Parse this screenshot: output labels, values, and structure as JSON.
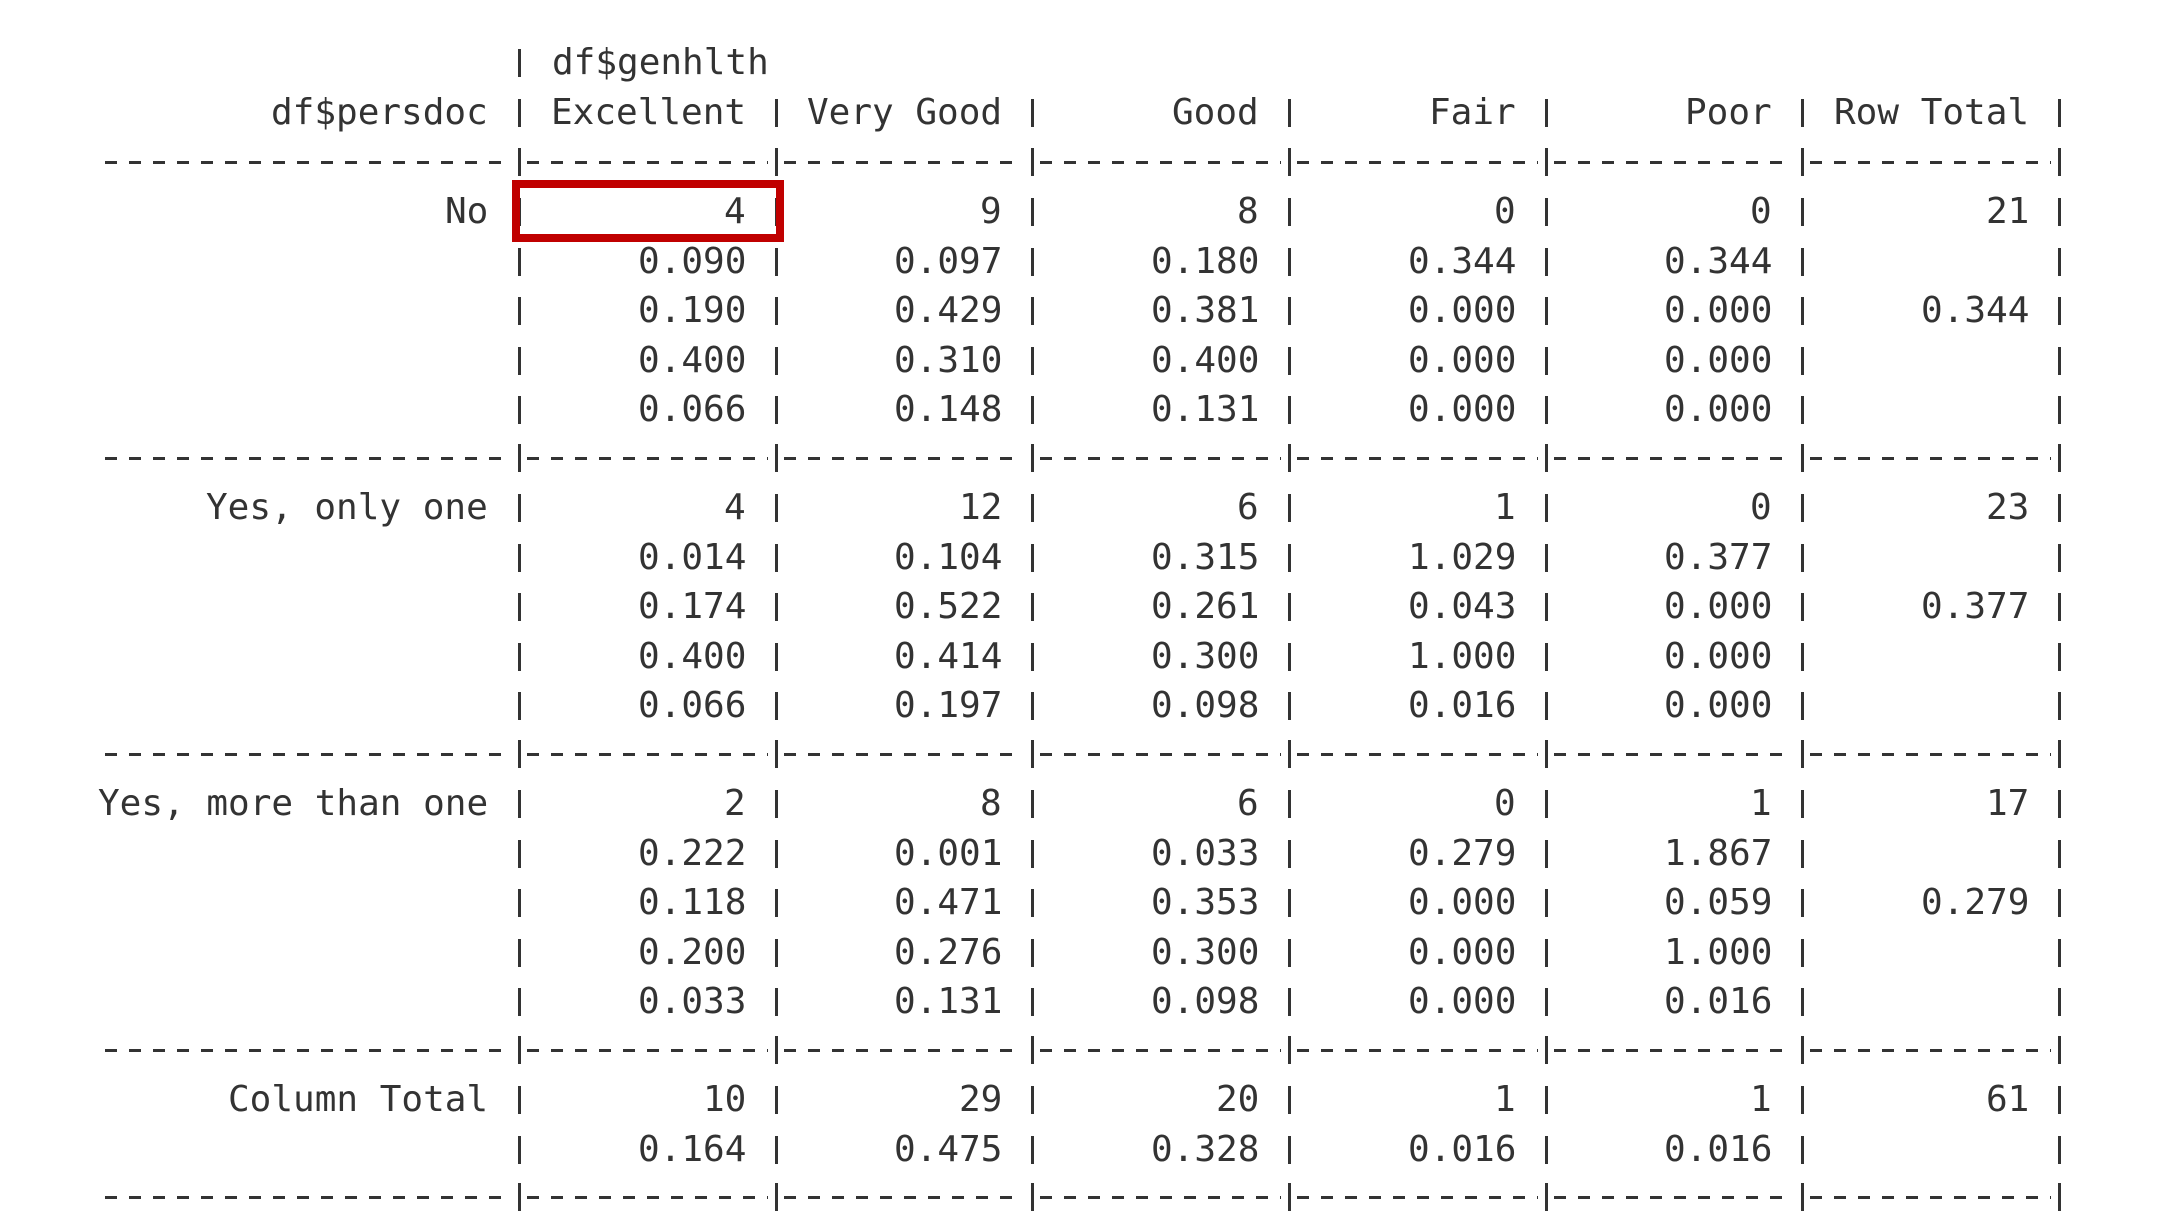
{
  "table": {
    "col_var": "df$genhlth",
    "row_var": "df$persdoc",
    "columns": [
      "Excellent",
      "Very Good",
      "Good",
      "Fair",
      "Poor",
      "Row Total"
    ],
    "rows": [
      {
        "label": "No",
        "cells": [
          [
            "4",
            "0.090",
            "0.190",
            "0.400",
            "0.066"
          ],
          [
            "9",
            "0.097",
            "0.429",
            "0.310",
            "0.148"
          ],
          [
            "8",
            "0.180",
            "0.381",
            "0.400",
            "0.131"
          ],
          [
            "0",
            "0.344",
            "0.000",
            "0.000",
            "0.000"
          ],
          [
            "0",
            "0.344",
            "0.000",
            "0.000",
            "0.000"
          ],
          [
            "21",
            "",
            "0.344",
            "",
            ""
          ]
        ]
      },
      {
        "label": "Yes, only one",
        "cells": [
          [
            "4",
            "0.014",
            "0.174",
            "0.400",
            "0.066"
          ],
          [
            "12",
            "0.104",
            "0.522",
            "0.414",
            "0.197"
          ],
          [
            "6",
            "0.315",
            "0.261",
            "0.300",
            "0.098"
          ],
          [
            "1",
            "1.029",
            "0.043",
            "1.000",
            "0.016"
          ],
          [
            "0",
            "0.377",
            "0.000",
            "0.000",
            "0.000"
          ],
          [
            "23",
            "",
            "0.377",
            "",
            ""
          ]
        ]
      },
      {
        "label": "Yes, more than one",
        "cells": [
          [
            "2",
            "0.222",
            "0.118",
            "0.200",
            "0.033"
          ],
          [
            "8",
            "0.001",
            "0.471",
            "0.276",
            "0.131"
          ],
          [
            "6",
            "0.033",
            "0.353",
            "0.300",
            "0.098"
          ],
          [
            "0",
            "0.279",
            "0.000",
            "0.000",
            "0.000"
          ],
          [
            "1",
            "1.867",
            "0.059",
            "1.000",
            "0.016"
          ],
          [
            "17",
            "",
            "0.279",
            "",
            ""
          ]
        ]
      },
      {
        "label": "Column Total",
        "cells": [
          [
            "10",
            "0.164"
          ],
          [
            "29",
            "0.475"
          ],
          [
            "20",
            "0.328"
          ],
          [
            "1",
            "0.016"
          ],
          [
            "1",
            "0.016"
          ],
          [
            "61",
            ""
          ]
        ]
      }
    ]
  },
  "highlight_color": "#c00000"
}
